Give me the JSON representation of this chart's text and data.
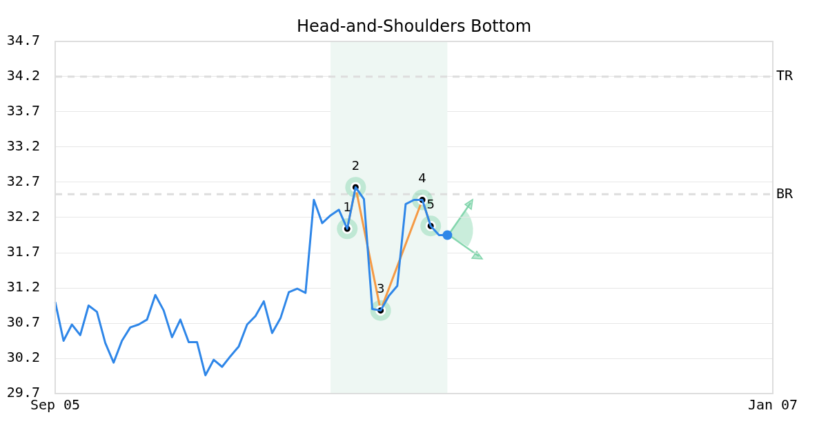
{
  "chart_data": {
    "type": "line",
    "title": "Head-and-Shoulders Bottom",
    "categories": [
      "Sep 05",
      null,
      null,
      null,
      null,
      null,
      null,
      null,
      null,
      null,
      null,
      null,
      null,
      null,
      null,
      null,
      null,
      null,
      null,
      null,
      null,
      null,
      null,
      null,
      null,
      null,
      null,
      null,
      null,
      null,
      null,
      null,
      null,
      null,
      null,
      null,
      null,
      null,
      null,
      null,
      null,
      null,
      null,
      null,
      null,
      null,
      null,
      null,
      null,
      null,
      null,
      null,
      null,
      null,
      null,
      null,
      null,
      null,
      null,
      null,
      null,
      null,
      null,
      null,
      null,
      null,
      null,
      null,
      null,
      null,
      null,
      null,
      null,
      null,
      null,
      null,
      null,
      null,
      null,
      null,
      null,
      null,
      null,
      null,
      null,
      null,
      "Jan 07"
    ],
    "ylim": [
      29.7,
      34.7
    ],
    "yticks": [
      29.7,
      30.2,
      30.7,
      31.2,
      31.7,
      32.2,
      32.7,
      33.2,
      33.7,
      34.2,
      34.7
    ],
    "grid": "y",
    "legend": false,
    "series": [
      {
        "color": "#2e86e8",
        "marker": "none",
        "values": [
          31.0,
          30.45,
          30.68,
          30.53,
          30.95,
          30.86,
          30.42,
          30.14,
          30.45,
          30.64,
          30.68,
          30.75,
          31.1,
          30.88,
          30.5,
          30.75,
          30.43,
          30.43,
          29.96,
          30.18,
          30.08,
          30.23,
          30.37,
          30.68,
          30.8,
          31.01,
          30.56,
          30.77,
          31.14,
          31.19,
          31.13,
          32.45,
          32.12,
          32.23,
          32.31,
          32.04,
          32.63,
          32.46,
          30.9,
          30.88,
          31.09,
          31.23,
          32.39,
          32.45,
          32.45,
          32.08,
          31.95,
          31.95,
          null,
          null,
          null,
          null,
          null,
          null,
          null,
          null,
          null,
          null,
          null,
          null,
          null,
          null,
          null,
          null,
          null,
          null,
          null,
          null,
          null,
          null,
          null,
          null,
          null,
          null,
          null,
          null,
          null,
          null,
          null,
          null,
          null,
          null,
          null,
          null,
          null,
          null,
          null
        ]
      },
      {
        "color": "#f59a45",
        "marker": "circle",
        "values": [
          null,
          null,
          null,
          null,
          null,
          null,
          null,
          null,
          null,
          null,
          null,
          null,
          null,
          null,
          null,
          null,
          null,
          null,
          null,
          null,
          null,
          null,
          null,
          null,
          null,
          null,
          null,
          null,
          null,
          null,
          null,
          null,
          null,
          null,
          null,
          32.04,
          32.63,
          null,
          null,
          30.88,
          null,
          null,
          null,
          null,
          32.45,
          32.08,
          null,
          null,
          null,
          null,
          null,
          null,
          null,
          null,
          null,
          null,
          null,
          null,
          null,
          null,
          null,
          null,
          null,
          null,
          null,
          null,
          null,
          null,
          null,
          null,
          null,
          null,
          null,
          null,
          null,
          null,
          null,
          null,
          null,
          null,
          null,
          null,
          null,
          null,
          null,
          null,
          null
        ]
      },
      {
        "type": "scatter",
        "color": "#2e86e8",
        "marker": "circle",
        "values": [
          null,
          null,
          null,
          null,
          null,
          null,
          null,
          null,
          null,
          null,
          null,
          null,
          null,
          null,
          null,
          null,
          null,
          null,
          null,
          null,
          null,
          null,
          null,
          null,
          null,
          null,
          null,
          null,
          null,
          null,
          null,
          null,
          null,
          null,
          null,
          null,
          null,
          null,
          null,
          null,
          null,
          null,
          null,
          null,
          null,
          null,
          null,
          31.95,
          null,
          null,
          null,
          null,
          null,
          null,
          null,
          null,
          null,
          null,
          null,
          null,
          null,
          null,
          null,
          null,
          null,
          null,
          null,
          null,
          null,
          null,
          null,
          null,
          null,
          null,
          null,
          null,
          null,
          null,
          null,
          null,
          null,
          null,
          null,
          null,
          null,
          null,
          null
        ]
      }
    ],
    "ref_lines": [
      {
        "axis": "y",
        "value": 34.2,
        "label": "TR",
        "color": "#dddddd",
        "line_style": "dashed"
      },
      {
        "axis": "y",
        "value": 32.53,
        "label": "BR",
        "color": "#dddddd",
        "line_style": "dashed"
      }
    ],
    "annotations": [
      {
        "text": "1",
        "y": 32.04
      },
      {
        "text": "2",
        "y": 32.63
      },
      {
        "text": "3",
        "y": 30.88
      },
      {
        "text": "4",
        "y": 32.45
      },
      {
        "text": "5",
        "y": 32.08
      }
    ]
  }
}
